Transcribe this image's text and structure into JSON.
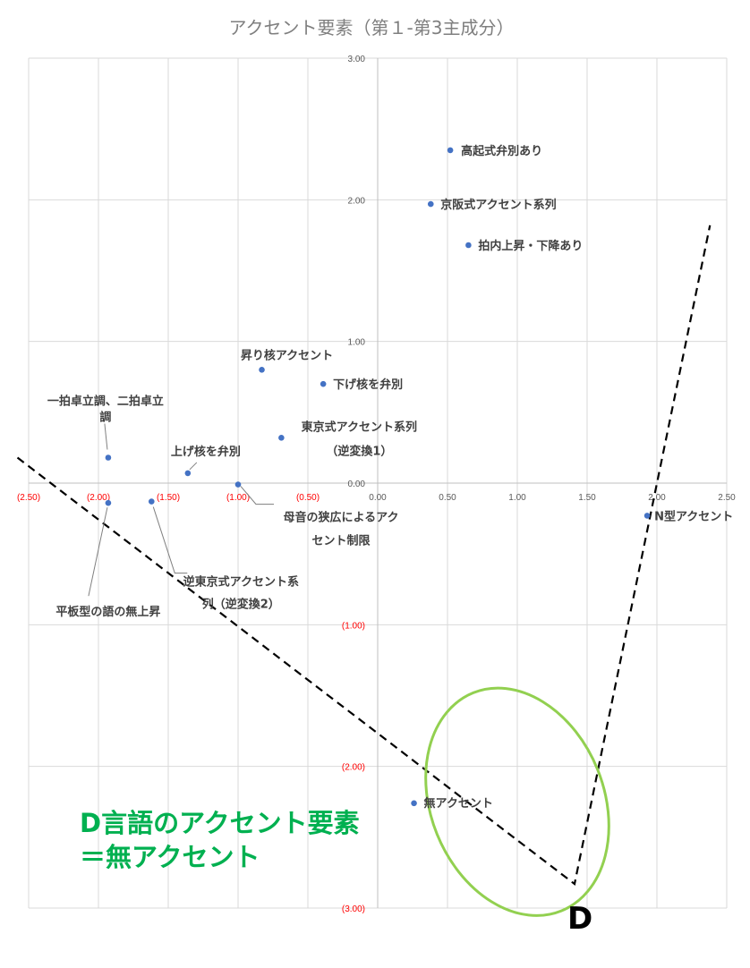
{
  "chart_data": {
    "type": "scatter",
    "title": "アクセント要素（第１-第3主成分）",
    "xlim": [
      -2.5,
      2.5
    ],
    "ylim": [
      -3.0,
      3.0
    ],
    "x_ticks": [
      {
        "value": -2.5,
        "label": "(2.50)"
      },
      {
        "value": -2.0,
        "label": "(2.00)"
      },
      {
        "value": -1.5,
        "label": "(1.50)"
      },
      {
        "value": -1.0,
        "label": "(1.00)"
      },
      {
        "value": -0.5,
        "label": "(0.50)"
      },
      {
        "value": 0.0,
        "label": "0.00"
      },
      {
        "value": 0.5,
        "label": "0.50"
      },
      {
        "value": 1.0,
        "label": "1.00"
      },
      {
        "value": 1.5,
        "label": "1.50"
      },
      {
        "value": 2.0,
        "label": "2.00"
      },
      {
        "value": 2.5,
        "label": "2.50"
      }
    ],
    "y_ticks": [
      {
        "value": 3.0,
        "label": "3.00"
      },
      {
        "value": 2.0,
        "label": "2.00"
      },
      {
        "value": 1.0,
        "label": "1.00"
      },
      {
        "value": 0.0,
        "label": "0.00"
      },
      {
        "value": -1.0,
        "label": "(1.00)"
      },
      {
        "value": -2.0,
        "label": "(2.00)"
      },
      {
        "value": -3.0,
        "label": "(3.00)"
      }
    ],
    "grid": true,
    "marker_color": "#4472c4",
    "negative_tick_color": "#ff0000",
    "positive_tick_color": "#595959",
    "points": [
      {
        "x": 0.52,
        "y": 2.35,
        "lines": [
          "高起式弁別あり"
        ]
      },
      {
        "x": 0.38,
        "y": 1.97,
        "lines": [
          "京阪式アクセント系列"
        ]
      },
      {
        "x": 0.65,
        "y": 1.68,
        "lines": [
          "拍内上昇・下降あり"
        ]
      },
      {
        "x": -0.83,
        "y": 0.8,
        "lines": [
          "昇り核アクセント"
        ]
      },
      {
        "x": -0.39,
        "y": 0.7,
        "lines": [
          "下げ核を弁別"
        ]
      },
      {
        "x": -1.93,
        "y": 0.18,
        "lines": [
          "一拍卓立調、二拍卓立",
          "調"
        ]
      },
      {
        "x": -0.69,
        "y": 0.32,
        "lines": [
          "東京式アクセント系列",
          "（逆変換1）"
        ]
      },
      {
        "x": -1.36,
        "y": 0.07,
        "lines": [
          "上げ核を弁別"
        ]
      },
      {
        "x": -1.0,
        "y": -0.01,
        "lines": [
          "母音の狭広によるアク",
          "セント制限"
        ]
      },
      {
        "x": -1.93,
        "y": -0.14,
        "lines": [
          "平板型の語の無上昇"
        ]
      },
      {
        "x": -1.62,
        "y": -0.13,
        "lines": [
          "逆東京式アクセント系",
          "列（逆変換2）"
        ]
      },
      {
        "x": 1.93,
        "y": -0.23,
        "lines": [
          "N型アクセント"
        ]
      },
      {
        "x": 0.26,
        "y": -2.26,
        "lines": [
          "無アクセント"
        ]
      }
    ],
    "dashed_line": [
      {
        "x": -2.58,
        "y": 0.18
      },
      {
        "x": 1.41,
        "y": -2.83
      },
      {
        "x": 2.38,
        "y": 1.82
      }
    ],
    "ellipse": {
      "cx": 1.0,
      "cy": -2.25,
      "rx": 0.62,
      "ry": 0.83,
      "color": "#92d050"
    },
    "annotations": {
      "line1": "D言語のアクセント要素",
      "line2": "＝無アクセント",
      "color": "#00b050",
      "d_mark": "D"
    }
  }
}
